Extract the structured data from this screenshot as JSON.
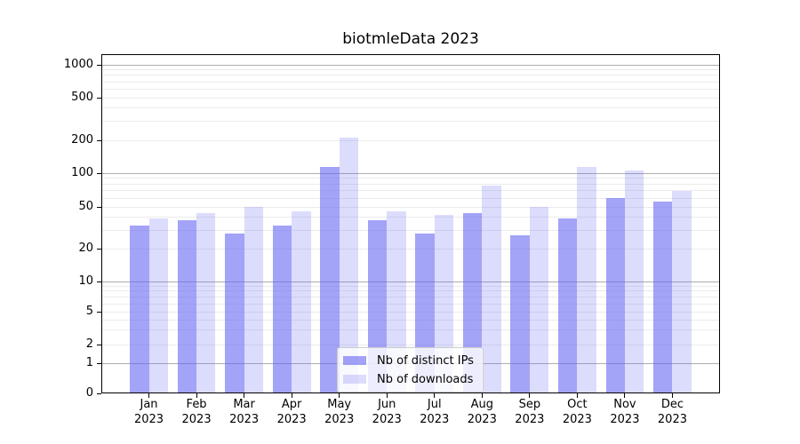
{
  "title": "biotmleData 2023",
  "chart_data": {
    "type": "bar",
    "title": "biotmleData 2023",
    "categories": [
      "Jan 2023",
      "Feb 2023",
      "Mar 2023",
      "Apr 2023",
      "May 2023",
      "Jun 2023",
      "Jul 2023",
      "Aug 2023",
      "Sep 2023",
      "Oct 2023",
      "Nov 2023",
      "Dec 2023"
    ],
    "series": [
      {
        "name": "Nb of distinct IPs",
        "color": "#6666f2",
        "alpha": 0.6,
        "values": [
          33,
          37,
          28,
          33,
          115,
          37,
          28,
          44,
          27,
          39,
          60,
          56
        ]
      },
      {
        "name": "Nb of downloads",
        "color": "#6666f2",
        "alpha": 0.23,
        "values": [
          39,
          44,
          50,
          45,
          210,
          45,
          42,
          78,
          50,
          115,
          105,
          70
        ]
      }
    ],
    "xlabel": "",
    "ylabel": "",
    "yscale": "symlog",
    "ylim": [
      0,
      1500
    ],
    "ytick_values": [
      0,
      1,
      2,
      5,
      10,
      20,
      50,
      100,
      200,
      500,
      1000
    ],
    "ytick_labels": [
      "0",
      "1",
      "2",
      "5",
      "10",
      "20",
      "50",
      "100",
      "200",
      "500",
      "1000"
    ],
    "grid": "horizontal major and minor gridlines",
    "legend_position": "inside bottom-center"
  },
  "legend": {
    "items": [
      "Nb of distinct IPs",
      "Nb of downloads"
    ]
  },
  "colors": {
    "bar_base": "#6666f2",
    "major_grid": "#adadad",
    "minor_grid": "#ebebeb",
    "spine": "#000000",
    "background": "#ffffff"
  }
}
